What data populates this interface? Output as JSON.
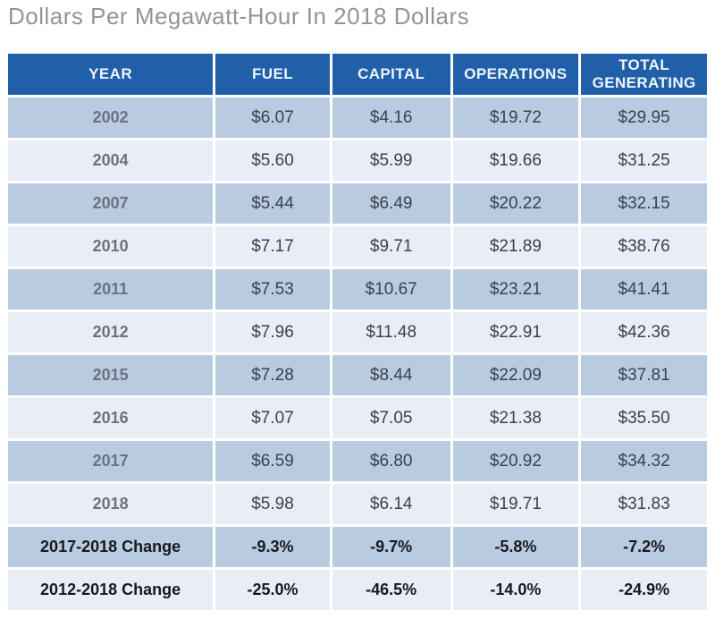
{
  "title": "Dollars Per Megawatt-Hour In 2018 Dollars",
  "colors": {
    "header_background": "#2160a9",
    "header_text": "#eef4fa",
    "row_dark": "#b9cbe1",
    "row_light": "#e9eef6",
    "title_text": "#919499",
    "value_text": "#3c414d",
    "year_text": "#6b7380",
    "change_text": "#17191e"
  },
  "table": {
    "columns": [
      "YEAR",
      "FUEL",
      "CAPITAL",
      "OPERATIONS",
      "TOTAL GENERATING"
    ],
    "rows": [
      {
        "label": "2002",
        "values": [
          "$6.07",
          "$4.16",
          "$19.72",
          "$29.95"
        ],
        "kind": "year"
      },
      {
        "label": "2004",
        "values": [
          "$5.60",
          "$5.99",
          "$19.66",
          "$31.25"
        ],
        "kind": "year"
      },
      {
        "label": "2007",
        "values": [
          "$5.44",
          "$6.49",
          "$20.22",
          "$32.15"
        ],
        "kind": "year"
      },
      {
        "label": "2010",
        "values": [
          "$7.17",
          "$9.71",
          "$21.89",
          "$38.76"
        ],
        "kind": "year"
      },
      {
        "label": "2011",
        "values": [
          "$7.53",
          "$10.67",
          "$23.21",
          "$41.41"
        ],
        "kind": "year"
      },
      {
        "label": "2012",
        "values": [
          "$7.96",
          "$11.48",
          "$22.91",
          "$42.36"
        ],
        "kind": "year"
      },
      {
        "label": "2015",
        "values": [
          "$7.28",
          "$8.44",
          "$22.09",
          "$37.81"
        ],
        "kind": "year"
      },
      {
        "label": "2016",
        "values": [
          "$7.07",
          "$7.05",
          "$21.38",
          "$35.50"
        ],
        "kind": "year"
      },
      {
        "label": "2017",
        "values": [
          "$6.59",
          "$6.80",
          "$20.92",
          "$34.32"
        ],
        "kind": "year"
      },
      {
        "label": "2018",
        "values": [
          "$5.98",
          "$6.14",
          "$19.71",
          "$31.83"
        ],
        "kind": "year"
      },
      {
        "label": "2017-2018 Change",
        "values": [
          "-9.3%",
          "-9.7%",
          "-5.8%",
          "-7.2%"
        ],
        "kind": "change"
      },
      {
        "label": "2012-2018 Change",
        "values": [
          "-25.0%",
          "-46.5%",
          "-14.0%",
          "-24.9%"
        ],
        "kind": "change"
      }
    ]
  },
  "chart_data": {
    "type": "table",
    "title": "Dollars Per Megawatt-Hour In 2018 Dollars",
    "columns": [
      "YEAR",
      "FUEL",
      "CAPITAL",
      "OPERATIONS",
      "TOTAL GENERATING"
    ],
    "rows": [
      [
        "2002",
        6.07,
        4.16,
        19.72,
        29.95
      ],
      [
        "2004",
        5.6,
        5.99,
        19.66,
        31.25
      ],
      [
        "2007",
        5.44,
        6.49,
        20.22,
        32.15
      ],
      [
        "2010",
        7.17,
        9.71,
        21.89,
        38.76
      ],
      [
        "2011",
        7.53,
        10.67,
        23.21,
        41.41
      ],
      [
        "2012",
        7.96,
        11.48,
        22.91,
        42.36
      ],
      [
        "2015",
        7.28,
        8.44,
        22.09,
        37.81
      ],
      [
        "2016",
        7.07,
        7.05,
        21.38,
        35.5
      ],
      [
        "2017",
        6.59,
        6.8,
        20.92,
        34.32
      ],
      [
        "2018",
        5.98,
        6.14,
        19.71,
        31.83
      ],
      [
        "2017-2018 Change",
        "-9.3%",
        "-9.7%",
        "-5.8%",
        "-7.2%"
      ],
      [
        "2012-2018 Change",
        "-25.0%",
        "-46.5%",
        "-14.0%",
        "-24.9%"
      ]
    ],
    "units": "USD per megawatt-hour (2018 dollars)"
  }
}
